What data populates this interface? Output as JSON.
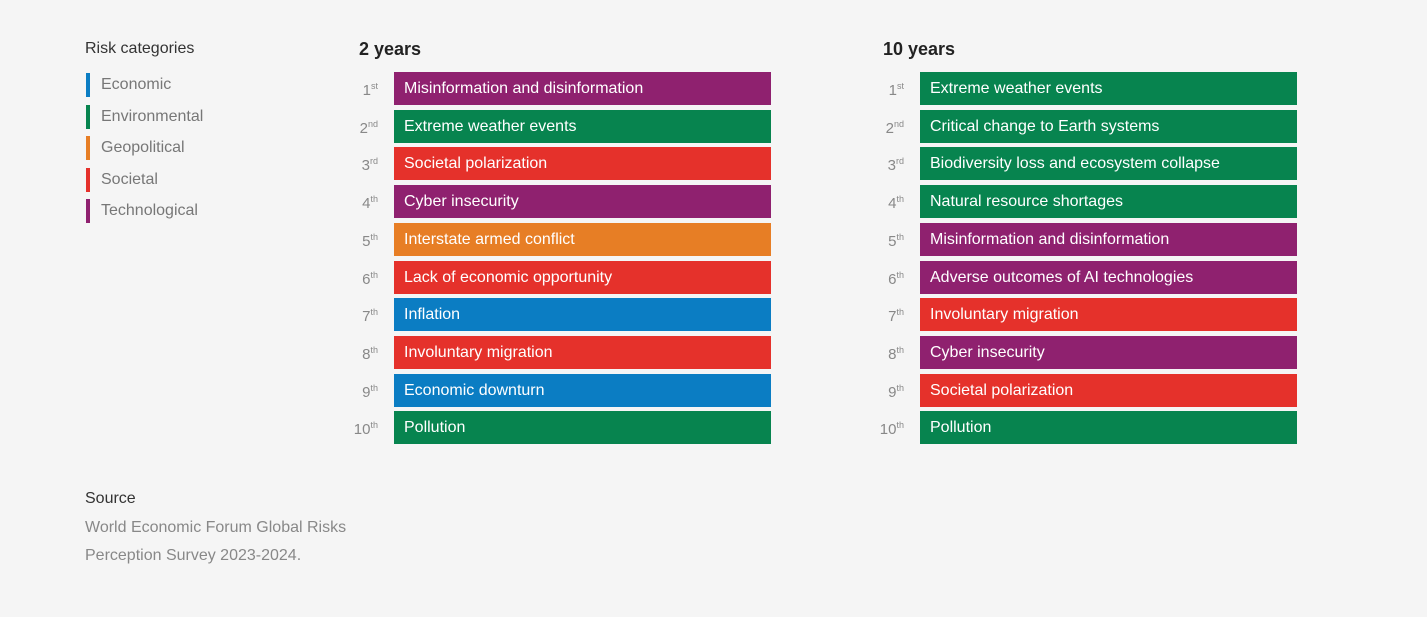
{
  "legend": {
    "title": "Risk categories",
    "items": [
      {
        "label": "Economic",
        "color": "#0b7dc3"
      },
      {
        "label": "Environmental",
        "color": "#07844f"
      },
      {
        "label": "Geopolitical",
        "color": "#e77e25"
      },
      {
        "label": "Societal",
        "color": "#e5312b"
      },
      {
        "label": "Technological",
        "color": "#8f216f"
      }
    ]
  },
  "columns": [
    {
      "title": "2 years",
      "rows": [
        {
          "rank": "1",
          "suffix": "st",
          "label": "Misinformation and disinformation",
          "color": "#8f216f"
        },
        {
          "rank": "2",
          "suffix": "nd",
          "label": "Extreme weather events",
          "color": "#07844f"
        },
        {
          "rank": "3",
          "suffix": "rd",
          "label": "Societal polarization",
          "color": "#e5312b"
        },
        {
          "rank": "4",
          "suffix": "th",
          "label": "Cyber insecurity",
          "color": "#8f216f"
        },
        {
          "rank": "5",
          "suffix": "th",
          "label": "Interstate armed conflict",
          "color": "#e77e25"
        },
        {
          "rank": "6",
          "suffix": "th",
          "label": "Lack of economic opportunity",
          "color": "#e5312b"
        },
        {
          "rank": "7",
          "suffix": "th",
          "label": "Inflation",
          "color": "#0b7dc3"
        },
        {
          "rank": "8",
          "suffix": "th",
          "label": "Involuntary migration",
          "color": "#e5312b"
        },
        {
          "rank": "9",
          "suffix": "th",
          "label": "Economic downturn",
          "color": "#0b7dc3"
        },
        {
          "rank": "10",
          "suffix": "th",
          "label": "Pollution",
          "color": "#07844f"
        }
      ]
    },
    {
      "title": "10 years",
      "rows": [
        {
          "rank": "1",
          "suffix": "st",
          "label": "Extreme weather events",
          "color": "#07844f"
        },
        {
          "rank": "2",
          "suffix": "nd",
          "label": "Critical change to Earth systems",
          "color": "#07844f"
        },
        {
          "rank": "3",
          "suffix": "rd",
          "label": "Biodiversity loss and ecosystem collapse",
          "color": "#07844f"
        },
        {
          "rank": "4",
          "suffix": "th",
          "label": "Natural resource shortages",
          "color": "#07844f"
        },
        {
          "rank": "5",
          "suffix": "th",
          "label": "Misinformation and disinformation",
          "color": "#8f216f"
        },
        {
          "rank": "6",
          "suffix": "th",
          "label": "Adverse outcomes of AI technologies",
          "color": "#8f216f"
        },
        {
          "rank": "7",
          "suffix": "th",
          "label": "Involuntary migration",
          "color": "#e5312b"
        },
        {
          "rank": "8",
          "suffix": "th",
          "label": "Cyber insecurity",
          "color": "#8f216f"
        },
        {
          "rank": "9",
          "suffix": "th",
          "label": "Societal polarization",
          "color": "#e5312b"
        },
        {
          "rank": "10",
          "suffix": "th",
          "label": "Pollution",
          "color": "#07844f"
        }
      ]
    }
  ],
  "source": {
    "title": "Source",
    "lines": [
      "World Economic Forum Global Risks",
      "Perception Survey 2023-2024."
    ]
  }
}
